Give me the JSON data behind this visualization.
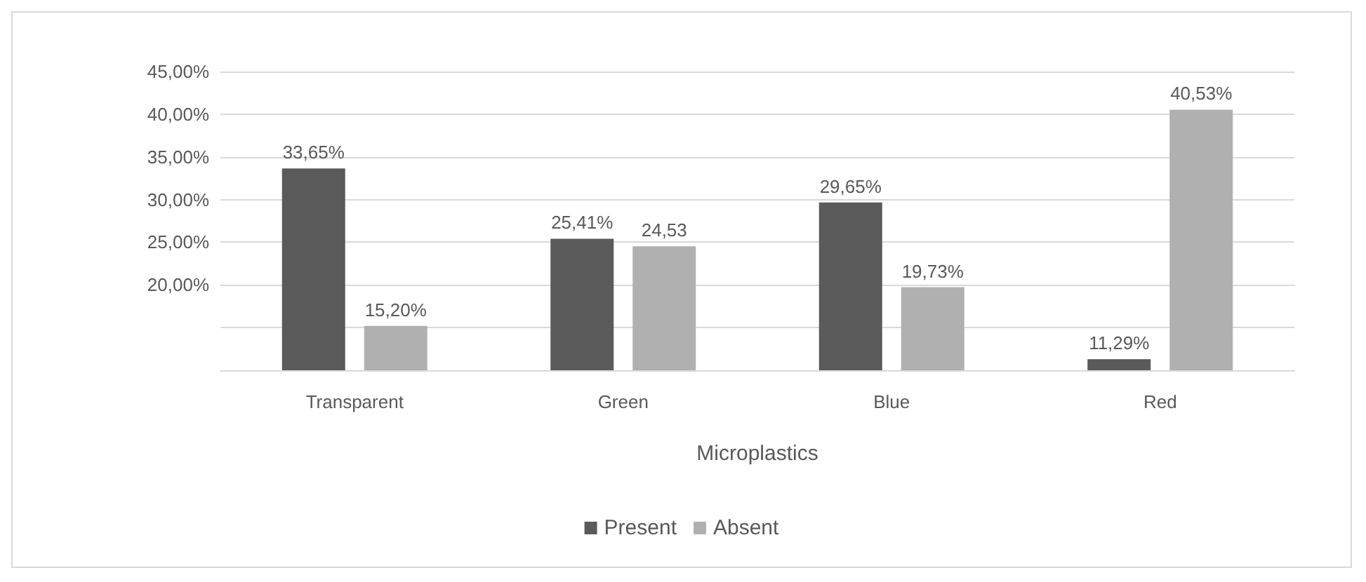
{
  "chart_data": {
    "type": "bar",
    "xlabel": "Microplastics",
    "categories": [
      "Transparent",
      "Green",
      "Blue",
      "Red"
    ],
    "series": [
      {
        "name": "Present",
        "color": "#5a5a5a",
        "values": [
          33.65,
          25.41,
          29.65,
          11.29
        ],
        "value_labels": [
          "33,65%",
          "25,41%",
          "29,65%",
          "11,29%"
        ]
      },
      {
        "name": "Absent",
        "color": "#b0b0b0",
        "values": [
          15.2,
          24.53,
          19.73,
          40.53
        ],
        "value_labels": [
          "15,20%",
          "24,53",
          "19,73%",
          "40,53%"
        ]
      }
    ],
    "ylim": [
      10,
      45
    ],
    "yticks": [
      {
        "value": 10,
        "label": null
      },
      {
        "value": 15,
        "label": null
      },
      {
        "value": 20,
        "label": "20,00%"
      },
      {
        "value": 25,
        "label": "25,00%"
      },
      {
        "value": 30,
        "label": "30,00%"
      },
      {
        "value": 35,
        "label": "35,00%"
      },
      {
        "value": 40,
        "label": "40,00%"
      },
      {
        "value": 45,
        "label": "45,00%"
      }
    ],
    "grid": "y",
    "legend": "bottom"
  }
}
